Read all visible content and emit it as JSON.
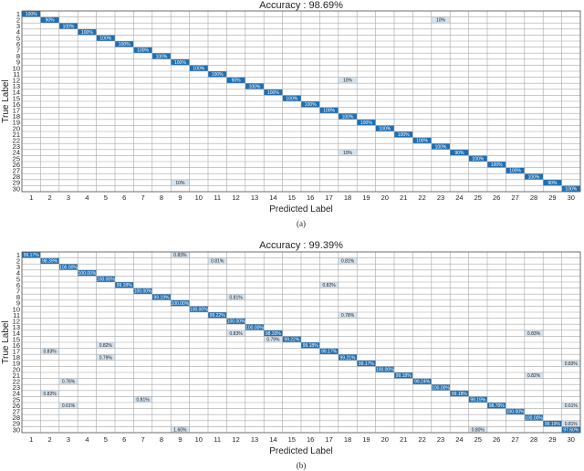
{
  "colors": {
    "diag": "#1f6fb2",
    "off": "#d6e4f0",
    "grid": "#a8a8a8",
    "border": "#555555"
  },
  "chart_data": [
    {
      "type": "heatmap",
      "title": "Accuracy : 98.69%",
      "xlabel": "Predicted Label",
      "ylabel": "True Label",
      "caption": "(a)",
      "labels": [
        "1",
        "2",
        "3",
        "4",
        "5",
        "6",
        "7",
        "8",
        "9",
        "10",
        "11",
        "12",
        "13",
        "14",
        "15",
        "16",
        "17",
        "18",
        "19",
        "20",
        "21",
        "22",
        "23",
        "24",
        "25",
        "26",
        "27",
        "28",
        "29",
        "30"
      ],
      "cells": [
        {
          "row": 1,
          "col": 1,
          "text": "100%"
        },
        {
          "row": 2,
          "col": 2,
          "text": "90%"
        },
        {
          "row": 2,
          "col": 23,
          "text": "10%"
        },
        {
          "row": 3,
          "col": 3,
          "text": "100%"
        },
        {
          "row": 4,
          "col": 4,
          "text": "100%"
        },
        {
          "row": 5,
          "col": 5,
          "text": "100%"
        },
        {
          "row": 6,
          "col": 6,
          "text": "100%"
        },
        {
          "row": 7,
          "col": 7,
          "text": "100%"
        },
        {
          "row": 8,
          "col": 8,
          "text": "100%"
        },
        {
          "row": 9,
          "col": 9,
          "text": "100%"
        },
        {
          "row": 10,
          "col": 10,
          "text": "100%"
        },
        {
          "row": 11,
          "col": 11,
          "text": "100%"
        },
        {
          "row": 12,
          "col": 12,
          "text": "90%"
        },
        {
          "row": 12,
          "col": 18,
          "text": "10%"
        },
        {
          "row": 13,
          "col": 13,
          "text": "100%"
        },
        {
          "row": 14,
          "col": 14,
          "text": "100%"
        },
        {
          "row": 15,
          "col": 15,
          "text": "100%"
        },
        {
          "row": 16,
          "col": 16,
          "text": "100%"
        },
        {
          "row": 17,
          "col": 17,
          "text": "100%"
        },
        {
          "row": 18,
          "col": 18,
          "text": "100%"
        },
        {
          "row": 19,
          "col": 19,
          "text": "100%"
        },
        {
          "row": 20,
          "col": 20,
          "text": "100%"
        },
        {
          "row": 21,
          "col": 21,
          "text": "100%"
        },
        {
          "row": 22,
          "col": 22,
          "text": "100%"
        },
        {
          "row": 23,
          "col": 23,
          "text": "100%"
        },
        {
          "row": 24,
          "col": 24,
          "text": "90%"
        },
        {
          "row": 24,
          "col": 18,
          "text": "10%"
        },
        {
          "row": 25,
          "col": 25,
          "text": "100%"
        },
        {
          "row": 26,
          "col": 26,
          "text": "100%"
        },
        {
          "row": 27,
          "col": 27,
          "text": "100%"
        },
        {
          "row": 28,
          "col": 28,
          "text": "100%"
        },
        {
          "row": 29,
          "col": 29,
          "text": "90%"
        },
        {
          "row": 29,
          "col": 9,
          "text": "10%"
        },
        {
          "row": 30,
          "col": 30,
          "text": "100%"
        }
      ]
    },
    {
      "type": "heatmap",
      "title": "Accuracy : 99.39%",
      "xlabel": "Predicted Label",
      "ylabel": "True Label",
      "caption": "(b)",
      "labels": [
        "1",
        "2",
        "3",
        "4",
        "5",
        "6",
        "7",
        "8",
        "9",
        "10",
        "11",
        "12",
        "13",
        "14",
        "15",
        "16",
        "17",
        "18",
        "19",
        "20",
        "21",
        "22",
        "23",
        "24",
        "25",
        "26",
        "27",
        "28",
        "29",
        "30"
      ],
      "cells": [
        {
          "row": 1,
          "col": 1,
          "text": "99.17%"
        },
        {
          "row": 1,
          "col": 9,
          "text": "0.83%"
        },
        {
          "row": 2,
          "col": 2,
          "text": "98.39%"
        },
        {
          "row": 2,
          "col": 11,
          "text": "0.81%"
        },
        {
          "row": 2,
          "col": 18,
          "text": "0.81%"
        },
        {
          "row": 3,
          "col": 3,
          "text": "100.00%"
        },
        {
          "row": 4,
          "col": 4,
          "text": "100.00%"
        },
        {
          "row": 5,
          "col": 5,
          "text": "100.00%"
        },
        {
          "row": 6,
          "col": 6,
          "text": "99.18%"
        },
        {
          "row": 6,
          "col": 17,
          "text": "0.82%"
        },
        {
          "row": 7,
          "col": 7,
          "text": "100.00%"
        },
        {
          "row": 8,
          "col": 8,
          "text": "99.19%"
        },
        {
          "row": 8,
          "col": 12,
          "text": "0.81%"
        },
        {
          "row": 9,
          "col": 9,
          "text": "100.00%"
        },
        {
          "row": 10,
          "col": 10,
          "text": "100.00%"
        },
        {
          "row": 11,
          "col": 11,
          "text": "99.22%"
        },
        {
          "row": 11,
          "col": 18,
          "text": "0.78%"
        },
        {
          "row": 12,
          "col": 12,
          "text": "100.00%"
        },
        {
          "row": 13,
          "col": 13,
          "text": "100.00%"
        },
        {
          "row": 14,
          "col": 12,
          "text": "0.83%"
        },
        {
          "row": 14,
          "col": 14,
          "text": "98.33%"
        },
        {
          "row": 14,
          "col": 28,
          "text": "0.83%"
        },
        {
          "row": 15,
          "col": 14,
          "text": "0.79%"
        },
        {
          "row": 15,
          "col": 15,
          "text": "99.22%"
        },
        {
          "row": 16,
          "col": 5,
          "text": "0.82%"
        },
        {
          "row": 16,
          "col": 16,
          "text": "99.18%"
        },
        {
          "row": 17,
          "col": 2,
          "text": "0.83%"
        },
        {
          "row": 17,
          "col": 17,
          "text": "99.17%"
        },
        {
          "row": 18,
          "col": 5,
          "text": "0.79%"
        },
        {
          "row": 18,
          "col": 18,
          "text": "99.21%"
        },
        {
          "row": 19,
          "col": 19,
          "text": "99.17%"
        },
        {
          "row": 19,
          "col": 30,
          "text": "0.83%"
        },
        {
          "row": 20,
          "col": 20,
          "text": "100.00%"
        },
        {
          "row": 21,
          "col": 21,
          "text": "99.18%"
        },
        {
          "row": 21,
          "col": 28,
          "text": "0.82%"
        },
        {
          "row": 22,
          "col": 3,
          "text": "0.76%"
        },
        {
          "row": 22,
          "col": 22,
          "text": "99.24%"
        },
        {
          "row": 23,
          "col": 23,
          "text": "100.00%"
        },
        {
          "row": 24,
          "col": 2,
          "text": "0.82%"
        },
        {
          "row": 24,
          "col": 24,
          "text": "99.18%"
        },
        {
          "row": 25,
          "col": 7,
          "text": "0.81%"
        },
        {
          "row": 25,
          "col": 25,
          "text": "99.19%"
        },
        {
          "row": 26,
          "col": 3,
          "text": "0.61%"
        },
        {
          "row": 26,
          "col": 26,
          "text": "98.78%"
        },
        {
          "row": 26,
          "col": 30,
          "text": "0.61%"
        },
        {
          "row": 27,
          "col": 27,
          "text": "100.00%"
        },
        {
          "row": 28,
          "col": 28,
          "text": "100.00%"
        },
        {
          "row": 29,
          "col": 29,
          "text": "99.19%"
        },
        {
          "row": 29,
          "col": 30,
          "text": "0.81%"
        },
        {
          "row": 30,
          "col": 9,
          "text": "1.60%"
        },
        {
          "row": 30,
          "col": 25,
          "text": "0.80%"
        },
        {
          "row": 30,
          "col": 30,
          "text": "97.60%"
        }
      ]
    }
  ]
}
